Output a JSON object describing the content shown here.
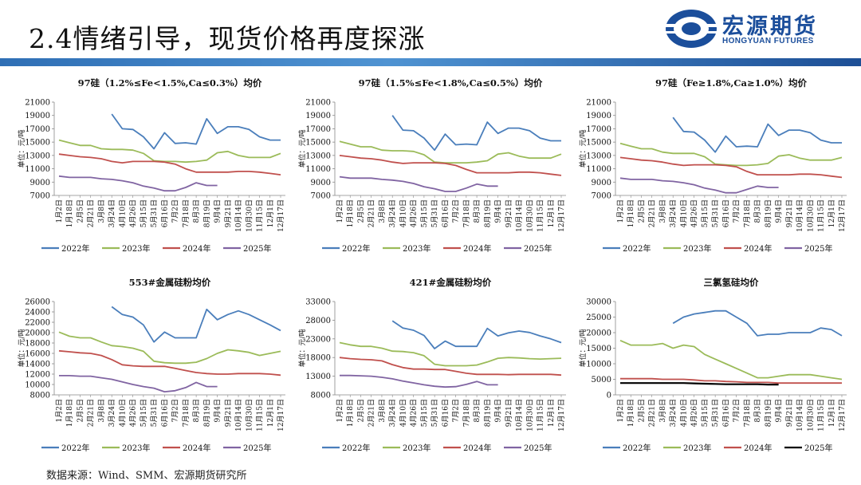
{
  "header": {
    "title": "2.4情绪引导，现货价格再度探涨"
  },
  "logo": {
    "name_cn": "宏源期货",
    "name_en": "HONGYUAN FUTURES"
  },
  "footer": {
    "source": "数据来源：Wind、SMM、宏源期货研究所"
  },
  "colors": {
    "band": "#2f6fb5",
    "brand": "#1b4e9b"
  },
  "chart_data": [
    {
      "type": "line",
      "title": "97硅（1.2%≤Fe<1.5%,Ca≤0.3%）均价",
      "ylabel": "单位：元/吨",
      "ylim": [
        7000,
        21000
      ],
      "yticks": [
        "7000",
        "9000",
        "11000",
        "13000",
        "15000",
        "17000",
        "19000",
        "21000"
      ],
      "categories": [
        "1月2日",
        "1月18日",
        "2月5日",
        "2月21日",
        "3月8日",
        "3月24日",
        "4月10日",
        "4月26日",
        "5月15日",
        "5月31日",
        "6月16日",
        "7月2日",
        "7月18日",
        "8月3日",
        "8月19日",
        "9月4日",
        "9月21日",
        "10月14日",
        "10月30日",
        "11月15日",
        "12月1日",
        "12月17日"
      ],
      "series": [
        {
          "name": "2022年",
          "color": "#4a7ebb",
          "values": [
            null,
            null,
            null,
            null,
            null,
            19200,
            17000,
            16900,
            15800,
            14000,
            16400,
            14800,
            14900,
            14700,
            18500,
            16300,
            17300,
            17300,
            16900,
            15800,
            15300,
            15300
          ]
        },
        {
          "name": "2023年",
          "color": "#9bbb59",
          "values": [
            15300,
            14900,
            14500,
            14500,
            14000,
            13900,
            13900,
            13800,
            13300,
            12200,
            12100,
            12100,
            12000,
            12100,
            12300,
            13400,
            13600,
            13000,
            12700,
            12700,
            12700,
            13300
          ]
        },
        {
          "name": "2024年",
          "color": "#c0504d",
          "values": [
            13200,
            13000,
            12800,
            12700,
            12500,
            12100,
            11900,
            12100,
            12100,
            12100,
            12000,
            11700,
            11000,
            10500,
            10500,
            10500,
            10500,
            10600,
            10600,
            10500,
            10300,
            10100
          ]
        },
        {
          "name": "2025年",
          "color": "#8064a2",
          "values": [
            9900,
            9700,
            9700,
            9700,
            9500,
            9400,
            9200,
            8900,
            8400,
            8100,
            7700,
            7700,
            8200,
            8900,
            8500,
            8500,
            null,
            null,
            null,
            null,
            null,
            null
          ]
        }
      ]
    },
    {
      "type": "line",
      "title": "97硅（1.5%≤Fe<1.8%,Ca≤0.5%）均价",
      "ylabel": "单位：元/吨",
      "ylim": [
        7000,
        21000
      ],
      "yticks": [
        "7000",
        "9000",
        "11000",
        "13000",
        "15000",
        "17000",
        "19000",
        "21000"
      ],
      "categories": [
        "1月2日",
        "1月18日",
        "2月5日",
        "2月21日",
        "3月8日",
        "3月24日",
        "4月10日",
        "4月26日",
        "5月15日",
        "5月31日",
        "6月16日",
        "7月2日",
        "7月18日",
        "8月3日",
        "8月19日",
        "9月4日",
        "9月21日",
        "10月14日",
        "10月30日",
        "11月15日",
        "12月1日",
        "12月17日"
      ],
      "series": [
        {
          "name": "2022年",
          "color": "#4a7ebb",
          "values": [
            null,
            null,
            null,
            null,
            null,
            19000,
            16800,
            16700,
            15600,
            13800,
            16200,
            14600,
            14700,
            14600,
            18000,
            16300,
            17100,
            17100,
            16700,
            15600,
            15200,
            15200
          ]
        },
        {
          "name": "2023年",
          "color": "#9bbb59",
          "values": [
            15100,
            14700,
            14300,
            14300,
            13800,
            13700,
            13700,
            13600,
            13100,
            12000,
            11900,
            11900,
            11900,
            12000,
            12200,
            13200,
            13400,
            12900,
            12600,
            12600,
            12600,
            13200
          ]
        },
        {
          "name": "2024年",
          "color": "#c0504d",
          "values": [
            13000,
            12800,
            12600,
            12500,
            12300,
            12000,
            11800,
            11900,
            11900,
            11900,
            11800,
            11500,
            10900,
            10400,
            10400,
            10400,
            10400,
            10500,
            10500,
            10400,
            10200,
            10000
          ]
        },
        {
          "name": "2025年",
          "color": "#8064a2",
          "values": [
            9800,
            9600,
            9600,
            9600,
            9400,
            9300,
            9100,
            8800,
            8300,
            8000,
            7600,
            7600,
            8100,
            8700,
            8400,
            8400,
            null,
            null,
            null,
            null,
            null,
            null
          ]
        }
      ]
    },
    {
      "type": "line",
      "title": "97硅（Fe≥1.8%,Ca≥1.0%）均价",
      "ylabel": "单位：元/吨",
      "ylim": [
        7000,
        21000
      ],
      "yticks": [
        "7000",
        "9000",
        "11000",
        "13000",
        "15000",
        "17000",
        "19000",
        "21000"
      ],
      "categories": [
        "1月2日",
        "1月18日",
        "2月5日",
        "2月21日",
        "3月8日",
        "3月24日",
        "4月10日",
        "4月26日",
        "5月15日",
        "5月31日",
        "6月16日",
        "7月2日",
        "7月18日",
        "8月3日",
        "8月19日",
        "9月4日",
        "9月21日",
        "10月14日",
        "10月30日",
        "11月15日",
        "12月1日",
        "12月17日"
      ],
      "series": [
        {
          "name": "2022年",
          "color": "#4a7ebb",
          "values": [
            null,
            null,
            null,
            null,
            null,
            18700,
            16600,
            16500,
            15300,
            13500,
            15900,
            14300,
            14400,
            14300,
            17700,
            16000,
            16800,
            16800,
            16400,
            15300,
            14900,
            14900
          ]
        },
        {
          "name": "2023年",
          "color": "#9bbb59",
          "values": [
            14800,
            14400,
            14000,
            14000,
            13500,
            13300,
            13300,
            13300,
            12800,
            11700,
            11600,
            11500,
            11500,
            11600,
            11800,
            12900,
            13100,
            12600,
            12300,
            12300,
            12300,
            12700
          ]
        },
        {
          "name": "2024年",
          "color": "#c0504d",
          "values": [
            12700,
            12500,
            12300,
            12200,
            12000,
            11700,
            11500,
            11600,
            11600,
            11600,
            11500,
            11300,
            10600,
            10100,
            10100,
            10100,
            10100,
            10200,
            10200,
            10100,
            9900,
            9700
          ]
        },
        {
          "name": "2025年",
          "color": "#8064a2",
          "values": [
            9600,
            9400,
            9400,
            9400,
            9200,
            9100,
            8900,
            8600,
            8100,
            7800,
            7400,
            7400,
            7900,
            8400,
            8200,
            8200,
            null,
            null,
            null,
            null,
            null,
            null
          ]
        }
      ]
    },
    {
      "type": "line",
      "title": "553#金属硅粉均价",
      "ylabel": "单位：元/吨",
      "ylim": [
        8000,
        26000
      ],
      "yticks": [
        "8000",
        "10000",
        "12000",
        "14000",
        "16000",
        "18000",
        "20000",
        "22000",
        "24000",
        "26000"
      ],
      "categories": [
        "1月2日",
        "1月18日",
        "2月5日",
        "2月21日",
        "3月8日",
        "3月24日",
        "4月10日",
        "4月26日",
        "5月15日",
        "5月31日",
        "6月16日",
        "7月2日",
        "7月18日",
        "8月3日",
        "8月19日",
        "9月4日",
        "9月21日",
        "10月14日",
        "10月30日",
        "11月15日",
        "12月1日",
        "12月17日"
      ],
      "series": [
        {
          "name": "2022年",
          "color": "#4a7ebb",
          "values": [
            null,
            null,
            null,
            null,
            null,
            25000,
            23500,
            23000,
            21500,
            18200,
            20100,
            19000,
            19000,
            19000,
            24500,
            22500,
            23500,
            24200,
            23500,
            22500,
            21500,
            20400
          ]
        },
        {
          "name": "2023年",
          "color": "#9bbb59",
          "values": [
            20100,
            19300,
            19000,
            19000,
            18200,
            17500,
            17300,
            17000,
            16400,
            14500,
            14200,
            14100,
            14100,
            14300,
            15000,
            16000,
            16700,
            16500,
            16200,
            15600,
            16000,
            16400
          ]
        },
        {
          "name": "2024年",
          "color": "#c0504d",
          "values": [
            16500,
            16300,
            16100,
            16000,
            15600,
            14800,
            13800,
            13600,
            13500,
            13500,
            13500,
            13100,
            12700,
            12300,
            12100,
            12000,
            12000,
            12100,
            12100,
            12100,
            12000,
            11800
          ]
        },
        {
          "name": "2025年",
          "color": "#8064a2",
          "values": [
            11700,
            11700,
            11600,
            11600,
            11300,
            11000,
            10500,
            10000,
            9600,
            9300,
            8600,
            8800,
            9400,
            10400,
            9600,
            9600,
            null,
            null,
            null,
            null,
            null,
            null
          ]
        }
      ]
    },
    {
      "type": "line",
      "title": "421#金属硅粉均价",
      "ylabel": "单位：元/吨",
      "ylim": [
        8000,
        33000
      ],
      "yticks": [
        "8000",
        "13000",
        "18000",
        "23000",
        "28000",
        "33000"
      ],
      "categories": [
        "1月2日",
        "1月18日",
        "2月5日",
        "2月21日",
        "3月8日",
        "3月24日",
        "4月10日",
        "4月26日",
        "5月15日",
        "5月31日",
        "6月16日",
        "7月2日",
        "7月18日",
        "8月3日",
        "8月19日",
        "9月4日",
        "9月21日",
        "10月14日",
        "10月30日",
        "11月15日",
        "12月1日",
        "12月17日"
      ],
      "series": [
        {
          "name": "2022年",
          "color": "#4a7ebb",
          "values": [
            null,
            null,
            null,
            null,
            null,
            27800,
            25900,
            25300,
            23900,
            20400,
            22400,
            21000,
            21000,
            21000,
            25800,
            23800,
            24600,
            25100,
            24700,
            23800,
            23000,
            22000
          ]
        },
        {
          "name": "2023年",
          "color": "#9bbb59",
          "values": [
            22000,
            21400,
            21000,
            21000,
            20500,
            19700,
            19600,
            19300,
            18500,
            16200,
            15800,
            15800,
            15800,
            16000,
            16800,
            17800,
            18000,
            17900,
            17700,
            17600,
            17700,
            17800
          ]
        },
        {
          "name": "2024年",
          "color": "#c0504d",
          "values": [
            18000,
            17700,
            17500,
            17400,
            17100,
            16100,
            15300,
            14900,
            14900,
            14800,
            14800,
            14300,
            13800,
            13500,
            13500,
            13500,
            13400,
            13500,
            13500,
            13500,
            13500,
            13300
          ]
        },
        {
          "name": "2025年",
          "color": "#8064a2",
          "values": [
            13200,
            13200,
            13100,
            13000,
            12700,
            12300,
            11700,
            11200,
            10700,
            10300,
            10100,
            10200,
            10800,
            11600,
            10700,
            10700,
            null,
            null,
            null,
            null,
            null,
            null
          ]
        }
      ]
    },
    {
      "type": "line",
      "title": "三氯氢硅均价",
      "ylabel": "单位：元/吨",
      "ylim": [
        0,
        30000
      ],
      "yticks": [
        "0",
        "5000",
        "10000",
        "15000",
        "20000",
        "25000",
        "30000"
      ],
      "categories": [
        "1月2日",
        "1月18日",
        "2月5日",
        "2月21日",
        "3月8日",
        "3月24日",
        "4月10日",
        "4月26日",
        "5月15日",
        "5月31日",
        "6月16日",
        "7月2日",
        "7月18日",
        "8月3日",
        "8月19日",
        "9月4日",
        "9月21日",
        "10月14日",
        "10月30日",
        "11月15日",
        "12月1日",
        "12月17日"
      ],
      "series": [
        {
          "name": "2022年",
          "color": "#4a7ebb",
          "values": [
            null,
            null,
            null,
            null,
            null,
            23000,
            25000,
            26000,
            26500,
            27000,
            27000,
            25000,
            23000,
            19000,
            19500,
            19500,
            20000,
            20000,
            20000,
            21500,
            21000,
            19000
          ]
        },
        {
          "name": "2023年",
          "color": "#9bbb59",
          "values": [
            17500,
            16000,
            16000,
            16000,
            16500,
            15000,
            16000,
            15500,
            13000,
            11500,
            10000,
            8500,
            7000,
            5500,
            5500,
            6000,
            6500,
            6500,
            6500,
            6000,
            5500,
            5000
          ]
        },
        {
          "name": "2024年",
          "color": "#c0504d",
          "values": [
            5200,
            5200,
            5200,
            5200,
            5000,
            5000,
            5000,
            4800,
            4500,
            4500,
            4300,
            4200,
            4000,
            4000,
            4000,
            3800,
            3800,
            3800,
            3800,
            3800,
            3800,
            3800
          ]
        },
        {
          "name": "2025年",
          "color": "#000000",
          "values": [
            3800,
            3800,
            3800,
            3800,
            3800,
            3800,
            3800,
            3700,
            3600,
            3500,
            3400,
            3400,
            3400,
            3400,
            3300,
            3300,
            null,
            null,
            null,
            null,
            null,
            null
          ]
        }
      ]
    }
  ]
}
